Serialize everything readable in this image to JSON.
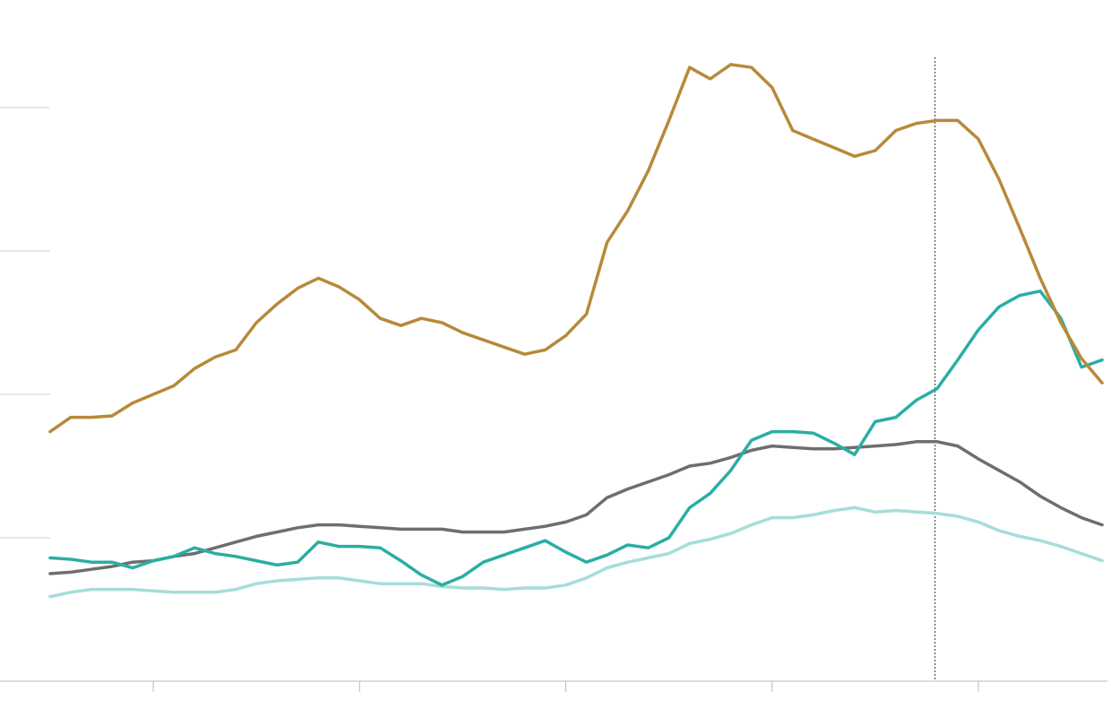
{
  "chart_data": {
    "type": "line",
    "x": [
      0.5,
      0.6,
      0.7,
      0.8,
      0.9,
      1.0,
      1.1,
      1.2,
      1.3,
      1.4,
      1.5,
      1.6,
      1.7,
      1.8,
      1.9,
      2.0,
      2.1,
      2.2,
      2.3,
      2.4,
      2.5,
      2.6,
      2.7,
      2.8,
      2.9,
      3.0,
      3.1,
      3.2,
      3.3,
      3.4,
      3.5,
      3.6,
      3.7,
      3.8,
      3.9,
      4.0,
      4.1,
      4.2,
      4.3,
      4.4,
      4.5,
      4.6,
      4.7,
      4.8,
      4.9,
      5.0,
      5.1,
      5.2,
      5.3,
      5.4,
      5.5,
      5.6
    ],
    "series": [
      {
        "color": "#a6ddd8",
        "values": [
          0.59,
          0.62,
          0.64,
          0.64,
          0.64,
          0.63,
          0.62,
          0.62,
          0.62,
          0.64,
          0.68,
          0.7,
          0.71,
          0.72,
          0.72,
          0.7,
          0.68,
          0.68,
          0.68,
          0.66,
          0.65,
          0.65,
          0.64,
          0.65,
          0.65,
          0.67,
          0.72,
          0.79,
          0.83,
          0.86,
          0.89,
          0.96,
          0.99,
          1.03,
          1.09,
          1.14,
          1.14,
          1.16,
          1.19,
          1.21,
          1.18,
          1.19,
          1.18,
          1.17,
          1.15,
          1.11,
          1.05,
          1.01,
          0.98,
          0.94,
          0.89,
          0.84
        ]
      },
      {
        "color": "#6f6e6e",
        "values": [
          0.75,
          0.76,
          0.78,
          0.8,
          0.83,
          0.84,
          0.87,
          0.89,
          0.93,
          0.97,
          1.01,
          1.04,
          1.07,
          1.09,
          1.09,
          1.08,
          1.07,
          1.06,
          1.06,
          1.06,
          1.04,
          1.04,
          1.04,
          1.06,
          1.08,
          1.11,
          1.16,
          1.28,
          1.34,
          1.39,
          1.44,
          1.5,
          1.52,
          1.56,
          1.61,
          1.64,
          1.63,
          1.62,
          1.62,
          1.63,
          1.64,
          1.65,
          1.67,
          1.67,
          1.64,
          1.55,
          1.47,
          1.39,
          1.29,
          1.21,
          1.14,
          1.09
        ]
      },
      {
        "color": "#2aaea2",
        "values": [
          0.86,
          0.85,
          0.83,
          0.83,
          0.79,
          0.84,
          0.87,
          0.93,
          0.89,
          0.87,
          0.84,
          0.81,
          0.83,
          0.97,
          0.94,
          0.94,
          0.93,
          0.84,
          0.74,
          0.67,
          0.73,
          0.83,
          0.88,
          0.93,
          0.98,
          0.9,
          0.83,
          0.88,
          0.95,
          0.93,
          1.0,
          1.21,
          1.31,
          1.47,
          1.68,
          1.74,
          1.74,
          1.73,
          1.66,
          1.58,
          1.81,
          1.84,
          1.96,
          2.04,
          2.24,
          2.45,
          2.61,
          2.69,
          2.72,
          2.53,
          2.19,
          2.24
        ]
      },
      {
        "color": "#b8893a",
        "values": [
          1.74,
          1.84,
          1.84,
          1.85,
          1.94,
          2.0,
          2.06,
          2.18,
          2.26,
          2.31,
          2.5,
          2.63,
          2.74,
          2.81,
          2.75,
          2.66,
          2.53,
          2.48,
          2.53,
          2.5,
          2.43,
          2.38,
          2.33,
          2.28,
          2.31,
          2.41,
          2.56,
          3.06,
          3.28,
          3.56,
          3.91,
          4.28,
          4.2,
          4.3,
          4.28,
          4.14,
          3.84,
          3.78,
          3.72,
          3.66,
          3.7,
          3.84,
          3.89,
          3.91,
          3.91,
          3.78,
          3.5,
          3.16,
          2.81,
          2.5,
          2.25,
          2.08
        ]
      }
    ],
    "xlim": [
      0.257,
      5.643
    ],
    "xticks": [
      1,
      2,
      3,
      4,
      5
    ],
    "ylim": [
      0,
      4.75
    ],
    "yticks": [
      0,
      1,
      2,
      3,
      4
    ],
    "vline": 4.79,
    "grid": true
  }
}
